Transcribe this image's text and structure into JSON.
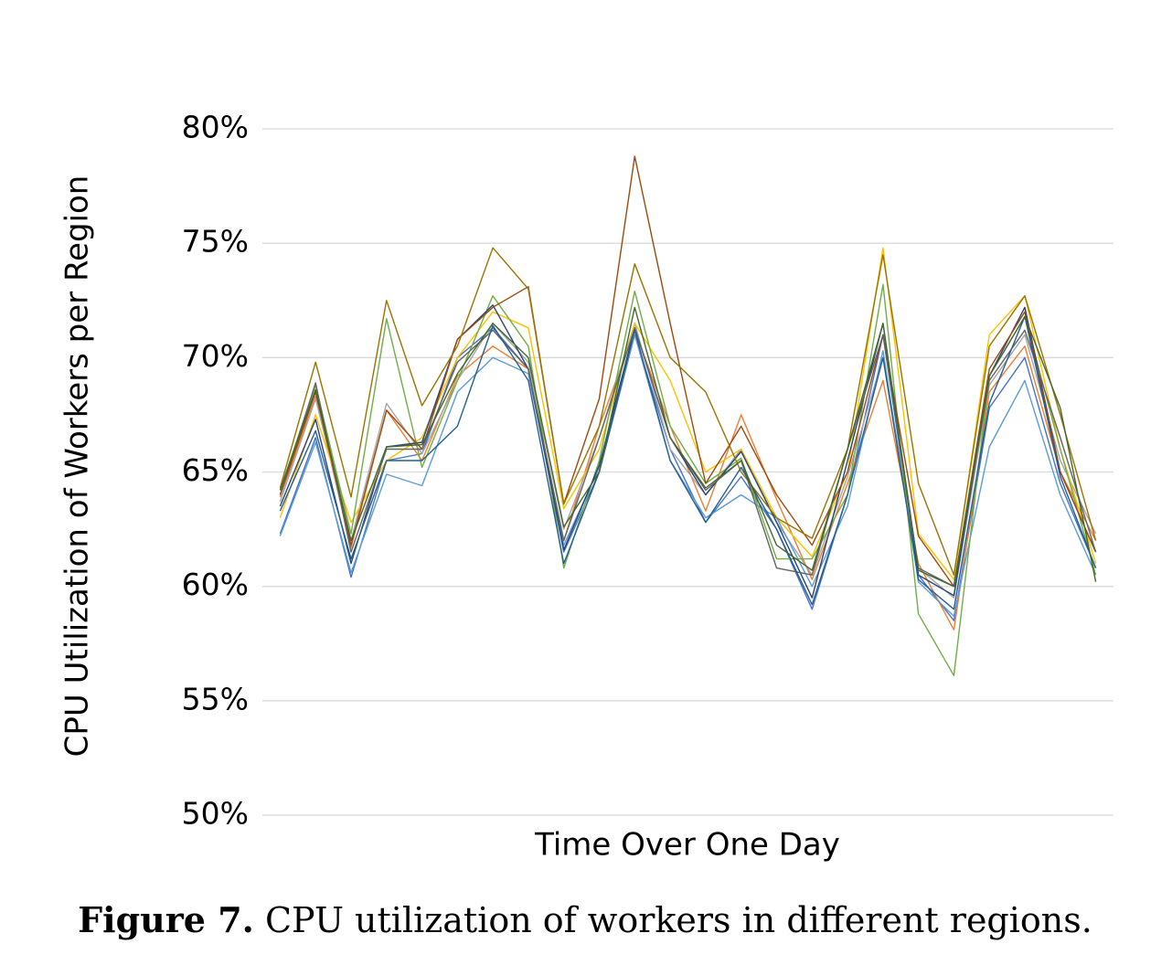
{
  "chart_data": {
    "type": "line",
    "ylabel": "CPU Utilization of Workers per Region",
    "xlabel": "Time Over One Day",
    "caption_label": "Figure 7.",
    "caption": "CPU utilization of workers in different regions.",
    "grid": true,
    "ylim": [
      50,
      80
    ],
    "yticks": [
      {
        "value": 50,
        "label": "50%"
      },
      {
        "value": 55,
        "label": "55%"
      },
      {
        "value": 60,
        "label": "60%"
      },
      {
        "value": 65,
        "label": "65%"
      },
      {
        "value": 70,
        "label": "70%"
      },
      {
        "value": 75,
        "label": "75%"
      },
      {
        "value": 80,
        "label": "80%"
      }
    ],
    "categories": [
      null,
      null,
      null,
      null,
      null,
      null,
      null,
      null,
      null,
      null,
      null,
      null,
      null,
      null,
      null,
      null,
      null,
      null,
      null,
      null,
      null,
      null,
      null,
      null
    ],
    "series": [
      {
        "color": "#4472c4",
        "values": [
          62.3,
          66.5,
          60.4,
          65.5,
          65.8,
          70.0,
          71.3,
          69.5,
          61.5,
          65.0,
          71.0,
          66.0,
          62.8,
          64.8,
          62.5,
          59.0,
          64.0,
          71.0,
          60.5,
          58.5,
          67.8,
          70.0,
          64.5,
          60.8
        ]
      },
      {
        "color": "#ed7d31",
        "values": [
          63.9,
          68.3,
          61.7,
          67.7,
          65.5,
          69.2,
          70.5,
          69.5,
          62.0,
          67.0,
          71.2,
          67.0,
          63.3,
          67.5,
          63.8,
          60.3,
          64.5,
          69.0,
          61.0,
          58.1,
          68.5,
          70.5,
          65.0,
          62.0
        ]
      },
      {
        "color": "#a5a5a5",
        "values": [
          63.7,
          68.2,
          62.0,
          68.0,
          65.8,
          69.0,
          71.5,
          69.8,
          62.5,
          66.5,
          71.5,
          66.0,
          64.0,
          66.0,
          62.8,
          60.5,
          64.8,
          70.0,
          60.8,
          59.5,
          68.8,
          71.0,
          65.5,
          62.3
        ]
      },
      {
        "color": "#ffc000",
        "values": [
          63.0,
          67.5,
          62.8,
          65.5,
          66.5,
          70.0,
          72.0,
          71.3,
          63.4,
          66.0,
          71.5,
          69.0,
          65.0,
          66.0,
          63.0,
          61.3,
          65.0,
          74.8,
          62.3,
          60.3,
          71.0,
          72.7,
          66.0,
          61.0
        ]
      },
      {
        "color": "#5b9bd5",
        "values": [
          62.2,
          66.3,
          60.6,
          64.9,
          64.4,
          68.5,
          70.0,
          69.3,
          61.8,
          65.2,
          71.0,
          65.5,
          63.0,
          64.0,
          63.0,
          60.0,
          63.5,
          70.3,
          60.2,
          58.7,
          66.1,
          69.0,
          64.0,
          60.5
        ]
      },
      {
        "color": "#70ad47",
        "values": [
          64.2,
          68.8,
          62.3,
          71.7,
          65.2,
          69.0,
          72.7,
          70.5,
          60.8,
          65.5,
          72.9,
          67.0,
          64.5,
          65.6,
          61.2,
          61.2,
          64.0,
          73.2,
          58.8,
          56.1,
          69.2,
          71.8,
          66.0,
          60.5
        ]
      },
      {
        "color": "#264478",
        "values": [
          63.5,
          67.3,
          61.0,
          66.1,
          66.3,
          70.8,
          72.3,
          69.5,
          61.6,
          65.3,
          71.3,
          66.5,
          64.0,
          65.9,
          62.8,
          59.5,
          65.5,
          71.5,
          60.5,
          59.6,
          69.2,
          72.2,
          65.0,
          61.5
        ]
      },
      {
        "color": "#9e480e",
        "values": [
          64.0,
          68.5,
          61.8,
          67.7,
          66.0,
          70.8,
          72.2,
          73.1,
          63.6,
          68.2,
          78.8,
          71.5,
          64.5,
          67.0,
          64.0,
          61.8,
          65.0,
          71.0,
          62.2,
          60.0,
          69.5,
          72.0,
          65.0,
          61.5
        ]
      },
      {
        "color": "#636363",
        "values": [
          64.0,
          68.9,
          61.5,
          66.0,
          66.0,
          69.8,
          71.2,
          69.5,
          62.0,
          66.5,
          71.3,
          66.5,
          64.2,
          65.5,
          60.8,
          60.5,
          66.0,
          71.0,
          60.8,
          60.0,
          69.0,
          71.2,
          66.5,
          61.5
        ]
      },
      {
        "color": "#997300",
        "values": [
          64.3,
          69.8,
          63.9,
          72.5,
          67.9,
          70.5,
          74.8,
          73.0,
          63.6,
          67.0,
          74.1,
          70.0,
          68.5,
          65.0,
          63.0,
          62.1,
          66.0,
          74.5,
          64.5,
          60.5,
          70.5,
          72.7,
          67.5,
          62.0
        ]
      },
      {
        "color": "#255e91",
        "values": [
          63.3,
          66.8,
          61.2,
          65.5,
          65.5,
          67.0,
          71.4,
          69.0,
          61.0,
          65.0,
          71.2,
          65.5,
          62.8,
          65.2,
          62.5,
          59.2,
          64.0,
          70.0,
          60.3,
          59.0,
          68.0,
          71.8,
          64.8,
          60.8
        ]
      },
      {
        "color": "#43682b",
        "values": [
          64.2,
          68.6,
          62.0,
          66.1,
          66.2,
          69.3,
          71.5,
          70.0,
          62.6,
          65.0,
          72.2,
          66.5,
          64.3,
          65.5,
          61.8,
          60.7,
          66.0,
          71.5,
          60.7,
          60.0,
          69.2,
          71.8,
          67.8,
          60.2
        ]
      }
    ]
  }
}
